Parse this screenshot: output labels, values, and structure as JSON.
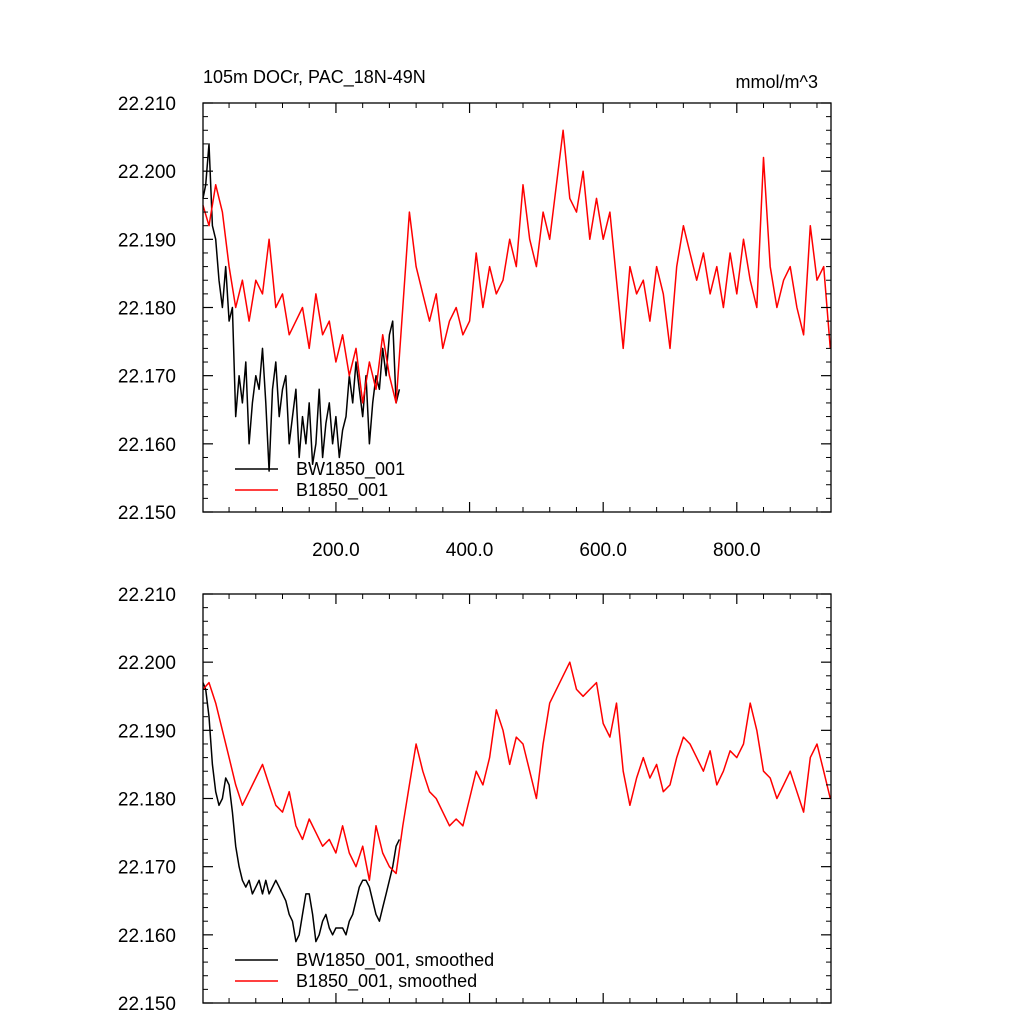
{
  "chart_data": [
    {
      "type": "line",
      "title": "105m DOCr, PAC_18N-49N",
      "units": "mmol/m^3",
      "xlabel": "",
      "ylabel": "",
      "xlim": [
        1,
        941
      ],
      "ylim": [
        22.15,
        22.21
      ],
      "xticks": [
        "200.0",
        "400.0",
        "600.0",
        "800.0"
      ],
      "yticks": [
        "22.150",
        "22.160",
        "22.170",
        "22.180",
        "22.190",
        "22.200",
        "22.210"
      ],
      "legend_position": "bottom-left",
      "grid": false,
      "series": [
        {
          "name": "BW1850_001",
          "color": "#000000",
          "x": [
            1,
            5,
            10,
            15,
            20,
            25,
            30,
            35,
            40,
            45,
            50,
            55,
            60,
            65,
            70,
            75,
            80,
            85,
            90,
            95,
            100,
            105,
            110,
            115,
            120,
            125,
            130,
            135,
            140,
            145,
            150,
            155,
            160,
            165,
            170,
            175,
            180,
            185,
            190,
            195,
            200,
            205,
            210,
            215,
            220,
            225,
            230,
            235,
            240,
            245,
            250,
            255,
            260,
            265,
            270,
            275,
            280,
            285,
            290,
            295
          ],
          "values": [
            22.196,
            22.198,
            22.204,
            22.192,
            22.19,
            22.184,
            22.18,
            22.186,
            22.178,
            22.18,
            22.164,
            22.17,
            22.166,
            22.172,
            22.16,
            22.166,
            22.17,
            22.168,
            22.174,
            22.166,
            22.156,
            22.168,
            22.172,
            22.164,
            22.168,
            22.17,
            22.16,
            22.164,
            22.168,
            22.158,
            22.164,
            22.16,
            22.166,
            22.157,
            22.16,
            22.168,
            22.158,
            22.163,
            22.166,
            22.16,
            22.164,
            22.158,
            22.162,
            22.164,
            22.17,
            22.166,
            22.172,
            22.168,
            22.164,
            22.17,
            22.16,
            22.166,
            22.17,
            22.168,
            22.174,
            22.17,
            22.176,
            22.178,
            22.166,
            22.168
          ]
        },
        {
          "name": "B1850_001",
          "color": "#ff0000",
          "x": [
            1,
            10,
            20,
            30,
            40,
            50,
            60,
            70,
            80,
            90,
            100,
            110,
            120,
            130,
            140,
            150,
            160,
            170,
            180,
            190,
            200,
            210,
            220,
            230,
            240,
            250,
            260,
            270,
            280,
            290,
            300,
            310,
            320,
            330,
            340,
            350,
            360,
            370,
            380,
            390,
            400,
            410,
            420,
            430,
            440,
            450,
            460,
            470,
            480,
            490,
            500,
            510,
            520,
            530,
            540,
            550,
            560,
            570,
            580,
            590,
            600,
            610,
            620,
            630,
            640,
            650,
            660,
            670,
            680,
            690,
            700,
            710,
            720,
            730,
            740,
            750,
            760,
            770,
            780,
            790,
            800,
            810,
            820,
            830,
            840,
            850,
            860,
            870,
            880,
            890,
            900,
            910,
            920,
            930,
            940
          ],
          "values": [
            22.195,
            22.192,
            22.198,
            22.194,
            22.186,
            22.18,
            22.184,
            22.178,
            22.184,
            22.182,
            22.19,
            22.18,
            22.182,
            22.176,
            22.178,
            22.18,
            22.174,
            22.182,
            22.176,
            22.178,
            22.172,
            22.176,
            22.17,
            22.174,
            22.166,
            22.172,
            22.168,
            22.176,
            22.17,
            22.166,
            22.18,
            22.194,
            22.186,
            22.182,
            22.178,
            22.182,
            22.174,
            22.178,
            22.18,
            22.176,
            22.178,
            22.188,
            22.18,
            22.186,
            22.182,
            22.184,
            22.19,
            22.186,
            22.198,
            22.19,
            22.186,
            22.194,
            22.19,
            22.198,
            22.206,
            22.196,
            22.194,
            22.2,
            22.19,
            22.196,
            22.19,
            22.194,
            22.184,
            22.174,
            22.186,
            22.182,
            22.184,
            22.178,
            22.186,
            22.182,
            22.174,
            22.186,
            22.192,
            22.188,
            22.184,
            22.188,
            22.182,
            22.186,
            22.18,
            22.188,
            22.182,
            22.19,
            22.184,
            22.18,
            22.202,
            22.186,
            22.18,
            22.184,
            22.186,
            22.18,
            22.176,
            22.192,
            22.184,
            22.186,
            22.174
          ]
        }
      ]
    },
    {
      "type": "line",
      "title": "",
      "xlabel": "",
      "ylabel": "",
      "xlim": [
        1,
        941
      ],
      "ylim": [
        22.15,
        22.21
      ],
      "yticks": [
        "22.150",
        "22.160",
        "22.170",
        "22.180",
        "22.190",
        "22.200",
        "22.210"
      ],
      "legend_position": "bottom-left",
      "grid": false,
      "series": [
        {
          "name": "BW1850_001, smoothed",
          "color": "#000000",
          "x": [
            1,
            5,
            10,
            15,
            20,
            25,
            30,
            35,
            40,
            45,
            50,
            55,
            60,
            65,
            70,
            75,
            80,
            85,
            90,
            95,
            100,
            105,
            110,
            115,
            120,
            125,
            130,
            135,
            140,
            145,
            150,
            155,
            160,
            165,
            170,
            175,
            180,
            185,
            190,
            195,
            200,
            205,
            210,
            215,
            220,
            225,
            230,
            235,
            240,
            245,
            250,
            255,
            260,
            265,
            270,
            275,
            280,
            285,
            290,
            295
          ],
          "values": [
            22.197,
            22.196,
            22.192,
            22.185,
            22.181,
            22.179,
            22.18,
            22.183,
            22.182,
            22.178,
            22.173,
            22.17,
            22.168,
            22.167,
            22.168,
            22.166,
            22.167,
            22.168,
            22.166,
            22.168,
            22.166,
            22.167,
            22.168,
            22.167,
            22.166,
            22.165,
            22.163,
            22.162,
            22.159,
            22.16,
            22.163,
            22.166,
            22.166,
            22.163,
            22.159,
            22.16,
            22.162,
            22.163,
            22.161,
            22.16,
            22.161,
            22.161,
            22.161,
            22.16,
            22.162,
            22.163,
            22.165,
            22.167,
            22.168,
            22.168,
            22.167,
            22.165,
            22.163,
            22.162,
            22.164,
            22.166,
            22.168,
            22.17,
            22.173,
            22.174
          ]
        },
        {
          "name": "B1850_001, smoothed",
          "color": "#ff0000",
          "x": [
            1,
            10,
            20,
            30,
            40,
            50,
            60,
            70,
            80,
            90,
            100,
            110,
            120,
            130,
            140,
            150,
            160,
            170,
            180,
            190,
            200,
            210,
            220,
            230,
            240,
            250,
            260,
            270,
            280,
            290,
            300,
            310,
            320,
            330,
            340,
            350,
            360,
            370,
            380,
            390,
            400,
            410,
            420,
            430,
            440,
            450,
            460,
            470,
            480,
            490,
            500,
            510,
            520,
            530,
            540,
            550,
            560,
            570,
            580,
            590,
            600,
            610,
            620,
            630,
            640,
            650,
            660,
            670,
            680,
            690,
            700,
            710,
            720,
            730,
            740,
            750,
            760,
            770,
            780,
            790,
            800,
            810,
            820,
            830,
            840,
            850,
            860,
            870,
            880,
            890,
            900,
            910,
            920,
            930,
            940
          ],
          "values": [
            22.196,
            22.197,
            22.194,
            22.19,
            22.186,
            22.182,
            22.179,
            22.181,
            22.183,
            22.185,
            22.182,
            22.179,
            22.178,
            22.181,
            22.176,
            22.174,
            22.177,
            22.175,
            22.173,
            22.174,
            22.172,
            22.176,
            22.172,
            22.17,
            22.173,
            22.168,
            22.176,
            22.172,
            22.17,
            22.169,
            22.176,
            22.182,
            22.188,
            22.184,
            22.181,
            22.18,
            22.178,
            22.176,
            22.177,
            22.176,
            22.18,
            22.184,
            22.182,
            22.186,
            22.193,
            22.19,
            22.185,
            22.189,
            22.188,
            22.184,
            22.18,
            22.188,
            22.194,
            22.196,
            22.198,
            22.2,
            22.196,
            22.195,
            22.196,
            22.197,
            22.191,
            22.189,
            22.194,
            22.184,
            22.179,
            22.183,
            22.186,
            22.183,
            22.185,
            22.181,
            22.182,
            22.186,
            22.189,
            22.188,
            22.186,
            22.184,
            22.187,
            22.182,
            22.184,
            22.187,
            22.186,
            22.188,
            22.194,
            22.19,
            22.184,
            22.183,
            22.18,
            22.182,
            22.184,
            22.181,
            22.178,
            22.186,
            22.188,
            22.184,
            22.18
          ]
        }
      ]
    }
  ]
}
